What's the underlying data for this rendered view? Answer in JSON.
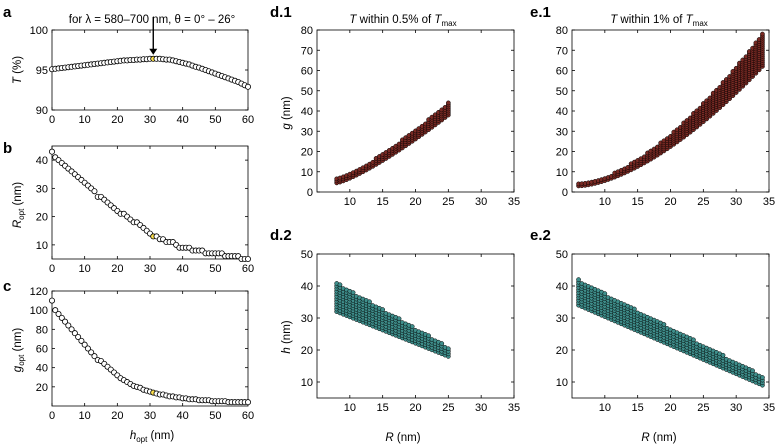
{
  "figure_title": "for λ = 580–700 nm,  θ = 0° – 26°",
  "colors": {
    "marker_a": "#ffffff",
    "highlight": "#ffe24d",
    "cloud_d1": "#7a2a24",
    "cloud_e1": "#7a2a24",
    "cloud_d2": "#3f8f8c",
    "cloud_e2": "#3f8f8c",
    "line": "#000000"
  },
  "chart_data": [
    {
      "panel": "a",
      "type": "scatter",
      "ylabel": "T (%)",
      "xlim": [
        0,
        60
      ],
      "ylim": [
        90,
        100
      ],
      "xticks": [
        0,
        10,
        20,
        30,
        40,
        50,
        60
      ],
      "yticks": [
        90,
        95,
        100
      ],
      "x": [
        0,
        1,
        2,
        3,
        4,
        5,
        6,
        7,
        8,
        9,
        10,
        11,
        12,
        13,
        14,
        15,
        16,
        17,
        18,
        19,
        20,
        21,
        22,
        23,
        24,
        25,
        26,
        27,
        28,
        29,
        30,
        31,
        32,
        33,
        34,
        35,
        36,
        37,
        38,
        39,
        40,
        41,
        42,
        43,
        44,
        45,
        46,
        47,
        48,
        49,
        50,
        51,
        52,
        53,
        54,
        55,
        56,
        57,
        58,
        59,
        60
      ],
      "y": [
        95.1,
        95.15,
        95.2,
        95.25,
        95.3,
        95.35,
        95.4,
        95.45,
        95.5,
        95.55,
        95.6,
        95.65,
        95.7,
        95.75,
        95.8,
        95.85,
        95.9,
        95.95,
        96.0,
        96.05,
        96.1,
        96.15,
        96.2,
        96.2,
        96.25,
        96.25,
        96.3,
        96.3,
        96.35,
        96.35,
        96.4,
        96.4,
        96.4,
        96.4,
        96.35,
        96.3,
        96.3,
        96.2,
        96.1,
        96.0,
        95.9,
        95.8,
        95.7,
        95.55,
        95.4,
        95.3,
        95.15,
        95.0,
        94.85,
        94.7,
        94.55,
        94.4,
        94.25,
        94.1,
        93.95,
        93.8,
        93.65,
        93.5,
        93.3,
        93.1,
        92.9
      ],
      "highlight_x": 31,
      "annotation": "arrow"
    },
    {
      "panel": "b",
      "type": "scatter",
      "ylabel": "R_opt (nm)",
      "xlim": [
        0,
        60
      ],
      "ylim": [
        5,
        45
      ],
      "xticks": [
        0,
        10,
        20,
        30,
        40,
        50,
        60
      ],
      "yticks": [
        10,
        20,
        30,
        40
      ],
      "x": [
        0,
        1,
        2,
        3,
        4,
        5,
        6,
        7,
        8,
        9,
        10,
        11,
        12,
        13,
        14,
        15,
        16,
        17,
        18,
        19,
        20,
        21,
        22,
        23,
        24,
        25,
        26,
        27,
        28,
        29,
        30,
        31,
        32,
        33,
        34,
        35,
        36,
        37,
        38,
        39,
        40,
        41,
        42,
        43,
        44,
        45,
        46,
        47,
        48,
        49,
        50,
        51,
        52,
        53,
        54,
        55,
        56,
        57,
        58,
        59,
        60
      ],
      "y": [
        43,
        41,
        40,
        39,
        38,
        37,
        36,
        35,
        34,
        33,
        32,
        31,
        30,
        29,
        27,
        27,
        26,
        25,
        24,
        23,
        22,
        21,
        21,
        20,
        19,
        18,
        18,
        17,
        16,
        15,
        14,
        13,
        13,
        12,
        12,
        11,
        11,
        11,
        10,
        9,
        9,
        9,
        9,
        8,
        8,
        8,
        8,
        7,
        7,
        7,
        7,
        7,
        7,
        6,
        6,
        6,
        6,
        6,
        5,
        5,
        5
      ],
      "highlight_x": 31
    },
    {
      "panel": "c",
      "type": "scatter",
      "xlabel": "h_opt (nm)",
      "ylabel": "g_opt (nm)",
      "xlim": [
        0,
        60
      ],
      "ylim": [
        0,
        120
      ],
      "xticks": [
        0,
        10,
        20,
        30,
        40,
        50,
        60
      ],
      "yticks": [
        20,
        40,
        60,
        80,
        100,
        120
      ],
      "x": [
        0,
        1,
        2,
        3,
        4,
        5,
        6,
        7,
        8,
        9,
        10,
        11,
        12,
        13,
        14,
        15,
        16,
        17,
        18,
        19,
        20,
        21,
        22,
        23,
        24,
        25,
        26,
        27,
        28,
        29,
        30,
        31,
        32,
        33,
        34,
        35,
        36,
        37,
        38,
        39,
        40,
        41,
        42,
        43,
        44,
        45,
        46,
        47,
        48,
        49,
        50,
        51,
        52,
        53,
        54,
        55,
        56,
        57,
        58,
        59,
        60
      ],
      "y": [
        110,
        100,
        96,
        92,
        88,
        84,
        80,
        76,
        72,
        68,
        64,
        60,
        56,
        52,
        48,
        47,
        44,
        41,
        38,
        35,
        32,
        29,
        27,
        25,
        23,
        21,
        20,
        19,
        17,
        16,
        15,
        14,
        13,
        12,
        12,
        11,
        10,
        10,
        9,
        9,
        8,
        8,
        7,
        7,
        7,
        6,
        6,
        6,
        6,
        5,
        5,
        5,
        5,
        5,
        4,
        4,
        4,
        4,
        4,
        4,
        4
      ],
      "highlight_x": 31
    },
    {
      "panel": "d.1",
      "type": "scatter",
      "title": "T within 0.5% of T_max",
      "ylabel": "g (nm)",
      "xlim": [
        5,
        35
      ],
      "ylim": [
        0,
        80
      ],
      "xticks": [
        10,
        15,
        20,
        25,
        30,
        35
      ],
      "yticks": [
        0,
        10,
        20,
        30,
        40,
        50,
        60,
        70,
        80
      ],
      "x_range": [
        8,
        25
      ],
      "y_low": [
        4.5,
        38
      ],
      "y_high": [
        6.5,
        44
      ],
      "curve": 1.25
    },
    {
      "panel": "d.2",
      "type": "scatter",
      "xlabel": "R (nm)",
      "ylabel": "h (nm)",
      "xlim": [
        5,
        35
      ],
      "ylim": [
        5,
        50
      ],
      "xticks": [
        10,
        15,
        20,
        25,
        30,
        35
      ],
      "yticks": [
        10,
        20,
        30,
        40,
        50
      ],
      "x_range": [
        8,
        25
      ],
      "y_low": [
        32,
        18
      ],
      "y_high": [
        41,
        21
      ],
      "curve": 1.0
    },
    {
      "panel": "e.1",
      "type": "scatter",
      "title": "T within 1% of T_max",
      "ylabel": "g (nm)",
      "xlim": [
        5,
        35
      ],
      "ylim": [
        0,
        80
      ],
      "xticks": [
        10,
        15,
        20,
        25,
        30,
        35
      ],
      "yticks": [
        0,
        10,
        20,
        30,
        40,
        50,
        60,
        70,
        80
      ],
      "x_range": [
        6,
        34
      ],
      "y_low": [
        3,
        62
      ],
      "y_high": [
        4,
        78
      ],
      "curve": 1.6
    },
    {
      "panel": "e.2",
      "type": "scatter",
      "xlabel": "R (nm)",
      "ylabel": "h (nm)",
      "xlim": [
        5,
        35
      ],
      "ylim": [
        5,
        50
      ],
      "xticks": [
        10,
        15,
        20,
        25,
        30,
        35
      ],
      "yticks": [
        10,
        20,
        30,
        40,
        50
      ],
      "x_range": [
        6,
        34
      ],
      "y_low": [
        34,
        9
      ],
      "y_high": [
        42,
        12
      ],
      "curve": 1.0
    }
  ],
  "panel_labels": {
    "a": "a",
    "b": "b",
    "c": "c",
    "d1": "d.1",
    "d2": "d.2",
    "e1": "e.1",
    "e2": "e.2"
  },
  "axis_text": {
    "T": "T",
    "pct": " (%)",
    "R": "R",
    "g": "g",
    "h": "h",
    "opt": "opt",
    "nm": " (nm)",
    "within05": " within 0.5% of ",
    "within1": " within 1% of ",
    "max": "max"
  }
}
